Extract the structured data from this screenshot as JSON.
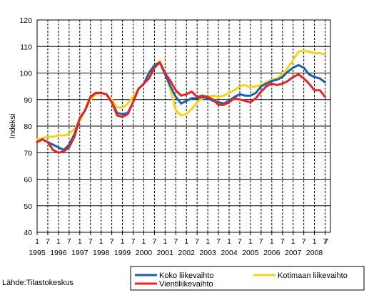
{
  "chart_data": {
    "type": "line",
    "title": "",
    "ylabel": "Indeksi",
    "xlabel": "",
    "ylim": [
      40,
      120
    ],
    "yticks": [
      40,
      50,
      60,
      70,
      80,
      90,
      100,
      110,
      120
    ],
    "x_range": [
      1995.0,
      2008.75
    ],
    "month_ticks": [
      "1",
      "7"
    ],
    "years": [
      "1995",
      "1996",
      "1997",
      "1998",
      "1999",
      "2000",
      "2001",
      "2002",
      "2003",
      "2004",
      "2005",
      "2006",
      "2007",
      "2008"
    ],
    "grid": "vertical dashed at month ticks, horizontal solid at y ticks",
    "legend_position": "bottom",
    "series": [
      {
        "name": "Koko liikevaihto",
        "color": "#1f5fa8",
        "x": [
          1995.0,
          1995.25,
          1995.5,
          1995.75,
          1996.0,
          1996.25,
          1996.5,
          1996.75,
          1997.0,
          1997.25,
          1997.5,
          1997.75,
          1998.0,
          1998.25,
          1998.5,
          1998.75,
          1999.0,
          1999.25,
          1999.5,
          1999.75,
          2000.0,
          2000.25,
          2000.5,
          2000.75,
          2001.0,
          2001.25,
          2001.5,
          2001.75,
          2002.0,
          2002.25,
          2002.5,
          2002.75,
          2003.0,
          2003.25,
          2003.5,
          2003.75,
          2004.0,
          2004.25,
          2004.5,
          2004.75,
          2005.0,
          2005.25,
          2005.5,
          2005.75,
          2006.0,
          2006.25,
          2006.5,
          2006.75,
          2007.0,
          2007.25,
          2007.5,
          2007.75,
          2008.0,
          2008.25,
          2008.5
        ],
        "values": [
          74,
          75,
          74,
          73,
          72,
          71,
          73,
          77,
          83,
          86,
          91,
          92.5,
          92.5,
          92,
          89,
          85,
          84.5,
          85,
          89,
          94,
          96,
          100,
          103,
          104,
          99.5,
          95,
          91,
          88.5,
          89.5,
          90.5,
          90.5,
          91,
          90.5,
          89.5,
          89,
          88.5,
          89.5,
          91,
          92,
          91.5,
          91.5,
          92.5,
          95,
          96,
          97,
          97.5,
          98.5,
          100.5,
          102,
          103,
          102,
          99.5,
          98.5,
          98,
          96.5
        ]
      },
      {
        "name": "Vientiliikevaihto",
        "color": "#e0262b",
        "x": [
          1995.0,
          1995.25,
          1995.5,
          1995.75,
          1996.0,
          1996.25,
          1996.5,
          1996.75,
          1997.0,
          1997.25,
          1997.5,
          1997.75,
          1998.0,
          1998.25,
          1998.5,
          1998.75,
          1999.0,
          1999.25,
          1999.5,
          1999.75,
          2000.0,
          2000.25,
          2000.5,
          2000.75,
          2001.0,
          2001.25,
          2001.5,
          2001.75,
          2002.0,
          2002.25,
          2002.5,
          2002.75,
          2003.0,
          2003.25,
          2003.5,
          2003.75,
          2004.0,
          2004.25,
          2004.5,
          2004.75,
          2005.0,
          2005.25,
          2005.5,
          2005.75,
          2006.0,
          2006.25,
          2006.5,
          2006.75,
          2007.0,
          2007.25,
          2007.5,
          2007.75,
          2008.0,
          2008.25,
          2008.5
        ],
        "values": [
          74,
          75,
          74,
          71,
          70,
          70.5,
          72,
          76,
          83,
          86,
          91,
          92.5,
          92.5,
          92,
          89,
          84,
          83.5,
          84.5,
          89,
          94,
          96,
          98,
          102,
          104,
          100,
          97,
          93.5,
          91.5,
          92,
          93,
          91,
          91.5,
          91,
          90,
          88,
          88,
          89,
          90.5,
          90,
          89.5,
          89,
          90.5,
          93,
          95,
          96,
          95.5,
          96,
          97,
          98.5,
          99.5,
          98,
          96,
          93.5,
          93.5,
          91
        ]
      },
      {
        "name": "Kotimaan liikevaihto",
        "color": "#f7d417",
        "x": [
          1995.0,
          1995.25,
          1995.5,
          1995.75,
          1996.0,
          1996.25,
          1996.5,
          1996.75,
          1997.0,
          1997.25,
          1997.5,
          1997.75,
          1998.0,
          1998.25,
          1998.5,
          1998.75,
          1999.0,
          1999.25,
          1999.5,
          1999.75,
          2000.0,
          2000.25,
          2000.5,
          2000.75,
          2001.0,
          2001.25,
          2001.5,
          2001.75,
          2002.0,
          2002.25,
          2002.5,
          2002.75,
          2003.0,
          2003.25,
          2003.5,
          2003.75,
          2004.0,
          2004.25,
          2004.5,
          2004.75,
          2005.0,
          2005.25,
          2005.5,
          2005.75,
          2006.0,
          2006.25,
          2006.5,
          2006.75,
          2007.0,
          2007.25,
          2007.5,
          2007.75,
          2008.0,
          2008.25,
          2008.5
        ],
        "values": [
          75,
          75.5,
          76,
          76,
          76.5,
          76.5,
          77,
          79,
          82,
          86,
          90,
          92,
          92.5,
          92,
          90,
          87,
          87,
          88.5,
          91,
          94,
          96,
          100.5,
          102.5,
          104.5,
          100,
          94,
          86,
          84,
          84.5,
          86.5,
          89,
          90.5,
          91,
          91.5,
          91,
          91.5,
          92.5,
          93.5,
          95,
          95.5,
          94.5,
          95,
          95.5,
          96.5,
          97.5,
          98,
          99.5,
          102,
          105,
          108,
          108.5,
          108,
          107.5,
          107.5,
          107
        ]
      }
    ]
  },
  "legend": [
    {
      "label": "Koko liikevaihto",
      "color": "#1f5fa8"
    },
    {
      "label": "Kotimaan liikevaihto",
      "color": "#f7d417"
    },
    {
      "label": "Vientiliikevaihto",
      "color": "#e0262b"
    }
  ],
  "source": "Lähde:Tilastokeskus"
}
